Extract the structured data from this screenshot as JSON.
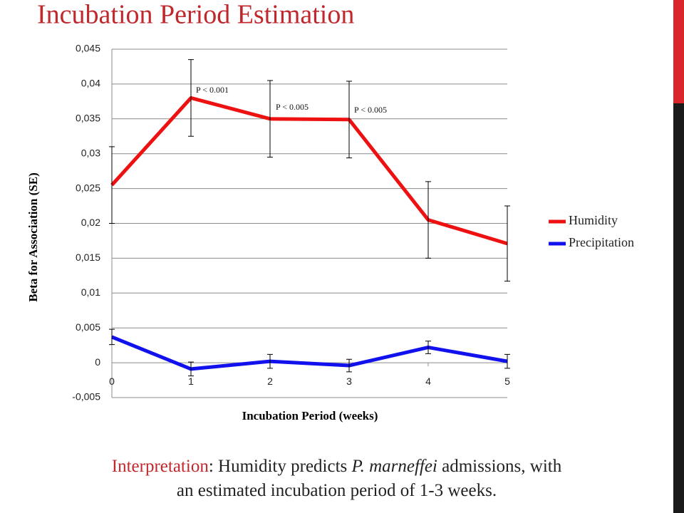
{
  "chart_data": {
    "type": "line",
    "title": "Incubation Period Estimation",
    "x_label": "Incubation Period (weeks)",
    "y_label": "Beta for Association (SE)",
    "x": [
      0,
      1,
      2,
      3,
      4,
      5
    ],
    "xlim": [
      0,
      5
    ],
    "xticks": [
      0,
      1,
      2,
      3,
      4,
      5
    ],
    "ylim": [
      -0.005,
      0.045
    ],
    "yticks": [
      {
        "value": -0.005,
        "label": "-0,005"
      },
      0,
      {
        "value": 0.005,
        "label": "0,005"
      },
      {
        "value": 0.01,
        "label": "0,01"
      },
      {
        "value": 0.015,
        "label": "0,015"
      },
      {
        "value": 0.02,
        "label": "0,02"
      },
      {
        "value": 0.025,
        "label": "0,025"
      },
      {
        "value": 0.03,
        "label": "0,03"
      },
      {
        "value": 0.035,
        "label": "0,035"
      },
      {
        "value": 0.04,
        "label": "0,04"
      },
      {
        "value": 0.045,
        "label": "0,045"
      }
    ],
    "grid": true,
    "legend": "right",
    "series": [
      {
        "name": "Humidity",
        "color": "#ee1111",
        "values": [
          0.0255,
          0.038,
          0.035,
          0.0349,
          0.0205,
          0.0171
        ],
        "errors": [
          0.0055,
          0.0055,
          0.0055,
          0.0055,
          0.0055,
          0.0054
        ]
      },
      {
        "name": "Precipitation",
        "color": "#1111ee",
        "values": [
          0.0037,
          -0.0009,
          0.0002,
          -0.0004,
          0.0022,
          0.0002
        ],
        "errors": [
          0.0011,
          0.001,
          0.001,
          0.0009,
          0.0009,
          0.001
        ]
      }
    ],
    "annotations": [
      "P < 0.001",
      "P < 0.005",
      "P < 0.005"
    ]
  },
  "caption": {
    "lead": "Interpretation",
    "text_1": ": Humidity predicts",
    "species": "P. marneffei",
    "text_2": "admissions, with",
    "line_2": "an estimated incubation period of 1-3 weeks."
  }
}
